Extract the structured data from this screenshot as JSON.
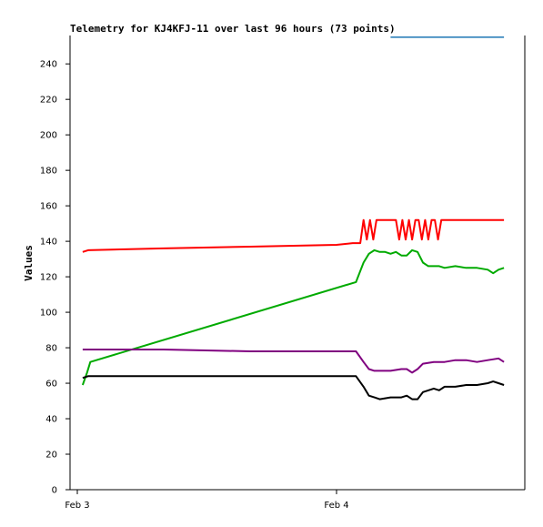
{
  "chart_data": {
    "type": "line",
    "title": "Telemetry for KJ4KFJ-11 over last 96 hours (73 points)",
    "xlabel": "",
    "ylabel": "Values",
    "ylim": [
      0,
      256
    ],
    "y_ticks": [
      0,
      20,
      40,
      60,
      80,
      100,
      120,
      140,
      160,
      180,
      200,
      220,
      240
    ],
    "x_ticks": [
      {
        "label": "Feb 3",
        "t": 0
      },
      {
        "label": "Feb 4",
        "t": 24
      }
    ],
    "xlim": [
      0,
      40.5
    ],
    "grid": false,
    "legend": "none",
    "series": [
      {
        "color": "#1f77b4",
        "x": [
          29.0,
          39.5
        ],
        "values": [
          255,
          255
        ]
      },
      {
        "color": "#ff0000",
        "x": [
          0.5,
          1.0,
          8.0,
          16.0,
          24.0,
          25.5,
          26.2,
          26.5,
          26.8,
          27.1,
          27.4,
          27.7,
          28.0,
          29.0,
          29.5,
          29.8,
          30.1,
          30.4,
          30.7,
          31.0,
          31.3,
          31.6,
          31.9,
          32.2,
          32.5,
          32.8,
          33.1,
          33.4,
          33.7,
          34.0,
          35.0,
          37.0,
          39.5
        ],
        "values": [
          134,
          135,
          136,
          137,
          138,
          139,
          139,
          152,
          141,
          152,
          141,
          152,
          152,
          152,
          152,
          141,
          152,
          141,
          152,
          141,
          152,
          152,
          141,
          152,
          141,
          152,
          152,
          141,
          152,
          152,
          152,
          152,
          152
        ]
      },
      {
        "color": "#00aa00",
        "x": [
          0.5,
          0.9,
          1.2,
          25.8,
          26.5,
          27.0,
          27.5,
          28.0,
          28.5,
          29.0,
          29.5,
          30.0,
          30.5,
          31.0,
          31.5,
          32.0,
          32.5,
          33.0,
          33.5,
          34.0,
          35.0,
          36.0,
          37.0,
          38.0,
          38.5,
          39.0,
          39.5
        ],
        "values": [
          59,
          66,
          72,
          117,
          128,
          133,
          135,
          134,
          134,
          133,
          134,
          132,
          132,
          135,
          134,
          128,
          126,
          126,
          126,
          125,
          126,
          125,
          125,
          124,
          122,
          124,
          125
        ]
      },
      {
        "color": "#800080",
        "x": [
          0.5,
          8.0,
          16.0,
          24.0,
          25.8,
          26.5,
          27.0,
          27.5,
          28.0,
          29.0,
          30.0,
          30.5,
          31.0,
          31.5,
          32.0,
          33.0,
          34.0,
          35.0,
          36.0,
          37.0,
          38.0,
          39.0,
          39.5
        ],
        "values": [
          79,
          79,
          78,
          78,
          78,
          72,
          68,
          67,
          67,
          67,
          68,
          68,
          66,
          68,
          71,
          72,
          72,
          73,
          73,
          72,
          73,
          74,
          72
        ]
      },
      {
        "color": "#000000",
        "x": [
          0.5,
          1.0,
          8.0,
          16.0,
          24.0,
          25.8,
          26.5,
          27.0,
          27.5,
          28.0,
          29.0,
          30.0,
          30.5,
          31.0,
          31.5,
          32.0,
          33.0,
          33.5,
          34.0,
          35.0,
          36.0,
          37.0,
          38.0,
          38.5,
          39.0,
          39.5
        ],
        "values": [
          63,
          64,
          64,
          64,
          64,
          64,
          58,
          53,
          52,
          51,
          52,
          52,
          53,
          51,
          51,
          55,
          57,
          56,
          58,
          58,
          59,
          59,
          60,
          61,
          60,
          59
        ]
      }
    ]
  }
}
